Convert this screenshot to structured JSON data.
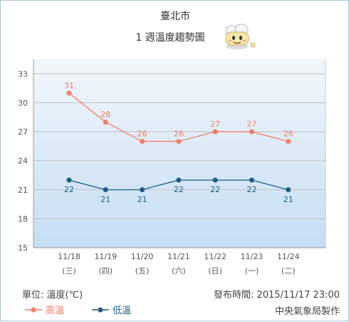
{
  "chart_data": {
    "type": "line",
    "title": "臺北市",
    "subtitle": "1 週溫度趨勢圖",
    "categories": [
      "11/18",
      "11/19",
      "11/20",
      "11/21",
      "11/22",
      "11/23",
      "11/24"
    ],
    "weekdays": [
      "(三)",
      "(四)",
      "(五)",
      "(六)",
      "(日)",
      "(一)",
      "(二)"
    ],
    "series": [
      {
        "name": "高溫",
        "values": [
          31,
          28,
          26,
          26,
          27,
          27,
          26
        ],
        "color": "#f47c68"
      },
      {
        "name": "低溫",
        "values": [
          22,
          21,
          21,
          22,
          22,
          22,
          21
        ],
        "color": "#1f5d82"
      }
    ],
    "yticks": [
      15,
      18,
      21,
      24,
      27,
      30,
      33
    ],
    "ylim": [
      15,
      34.5
    ],
    "grid": true
  },
  "footer": {
    "unit": "單位: 溫度(℃)",
    "issued": "發布時間: 2015/11/17 23:00",
    "credit": "中央氣象局製作"
  },
  "mascot_icon": "weather-mascot-icon",
  "colors": {
    "plot_top": "#f2f6fb",
    "plot_bottom": "#c6def2",
    "grid": "#c8c8c8"
  }
}
